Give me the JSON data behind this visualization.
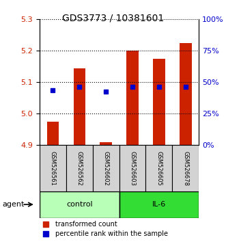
{
  "title": "GDS3773 / 10381601",
  "samples": [
    "GSM526561",
    "GSM526562",
    "GSM526602",
    "GSM526603",
    "GSM526605",
    "GSM526678"
  ],
  "red_values": [
    4.975,
    5.145,
    4.91,
    5.2,
    5.175,
    5.225
  ],
  "blue_values": [
    5.075,
    5.085,
    5.07,
    5.085,
    5.085,
    5.085
  ],
  "bar_bottom": 4.9,
  "ylim": [
    4.9,
    5.3
  ],
  "yticks": [
    4.9,
    5.0,
    5.1,
    5.2,
    5.3
  ],
  "right_yticks": [
    0,
    25,
    50,
    75,
    100
  ],
  "groups": [
    {
      "label": "control",
      "samples": [
        0,
        1,
        2
      ],
      "color": "#b8ffb8"
    },
    {
      "label": "IL-6",
      "samples": [
        3,
        4,
        5
      ],
      "color": "#33dd33"
    }
  ],
  "red_color": "#cc2200",
  "blue_color": "#0000cc",
  "bar_width": 0.45,
  "blue_marker_size": 5,
  "left_label_color": "#cc2200",
  "right_label_color": "#0000cc",
  "legend_red_label": "transformed count",
  "legend_blue_label": "percentile rank within the sample",
  "sample_box_color": "#d3d3d3",
  "agent_arrow_color": "#555555"
}
